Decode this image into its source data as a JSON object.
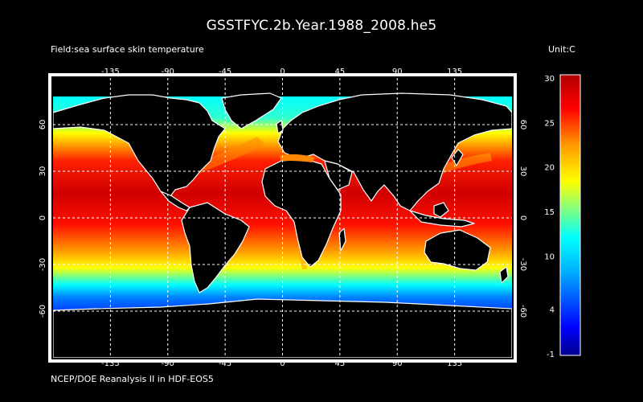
{
  "header": {
    "title": "GSSTFYC.2b.Year.1988_2008.he5",
    "field_label": "Field:sea surface skin temperature",
    "unit_label": "Unit:C"
  },
  "footer": {
    "source": "NCEP/DOE Reanalysis II in HDF-EOS5"
  },
  "map": {
    "projection": "equirectangular",
    "lon_range": [
      -180,
      180
    ],
    "lat_range": [
      -90,
      90
    ],
    "lon_ticks": [
      "-135",
      "-90",
      "-45",
      "0",
      "45",
      "90",
      "135"
    ],
    "lat_ticks": [
      "60",
      "30",
      "0",
      "-30",
      "-60"
    ],
    "lon_tick_values": [
      -135,
      -90,
      -45,
      0,
      45,
      90,
      135
    ],
    "lat_tick_values": [
      60,
      30,
      0,
      -30,
      -60
    ],
    "grid": "dashed white",
    "land_color": "#000000",
    "coastline_color": "#ffffff"
  },
  "colorbar": {
    "labels": [
      "30",
      "25",
      "20",
      "15",
      "10",
      "4",
      "-1"
    ],
    "values": [
      30,
      25,
      20,
      15,
      10,
      4,
      -1
    ],
    "range": [
      -1,
      30
    ],
    "colors": [
      "#00008b",
      "#0000ff",
      "#00a0ff",
      "#00ffff",
      "#80ff80",
      "#ffff00",
      "#ff9900",
      "#ff0000",
      "#b00000"
    ]
  }
}
